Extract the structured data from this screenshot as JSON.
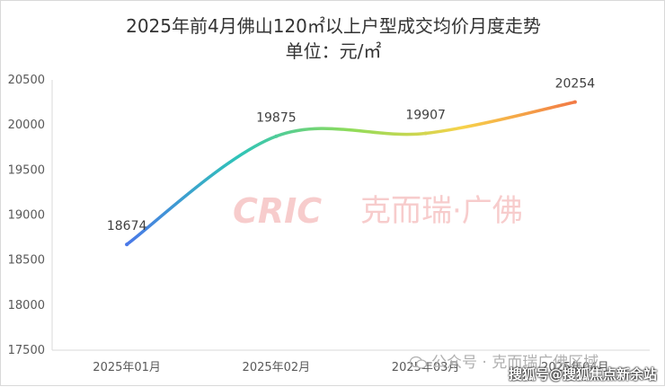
{
  "chart_data": {
    "type": "line",
    "title": "2025年前4月佛山120㎡以上户型成交均价月度走势",
    "subtitle": "单位：元/㎡",
    "categories": [
      "2025年01月",
      "2025年02月",
      "2025年03月",
      "2025年04月"
    ],
    "series": [
      {
        "values": [
          18674,
          19875,
          19907,
          20254
        ]
      }
    ],
    "ylim": [
      17500,
      20500
    ],
    "yticks": [
      17500,
      18000,
      18500,
      19000,
      19500,
      20000,
      20500
    ],
    "yticklabels": [
      "17500",
      "18000",
      "18500",
      "19000",
      "19500",
      "20000",
      "20500"
    ],
    "data_labels": [
      "18674",
      "19875",
      "19907",
      "20254"
    ],
    "grid": false,
    "legend": "none",
    "line_gradient": [
      "#4a78e8",
      "#2fc4b8",
      "#8fdc5a",
      "#f7d24a",
      "#f27a45"
    ]
  },
  "watermark": {
    "brand_latin": "CRIC",
    "brand_cn": "克而瑞·广佛"
  },
  "footer": {
    "wechat_text": "公众号 · 克而瑞广佛区域",
    "sohu_text": "搜狐号@搜狐焦点新余站"
  },
  "icons": {
    "wechat": "wechat-icon"
  }
}
